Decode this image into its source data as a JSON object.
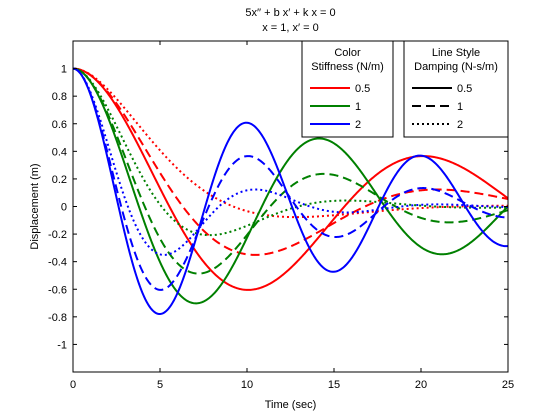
{
  "chart_data": {
    "type": "line",
    "title_lines": [
      "5x′′ + b x′ + k x = 0",
      "x = 1, x′ = 0"
    ],
    "xlabel": "Time (sec)",
    "ylabel": "Displacement (m)",
    "xlim": [
      0,
      25
    ],
    "ylim": [
      -1.2,
      1.2
    ],
    "xticks": [
      0,
      5,
      10,
      15,
      20,
      25
    ],
    "yticks": [
      -1,
      -0.8,
      -0.6,
      -0.4,
      -0.2,
      0,
      0.2,
      0.4,
      0.6,
      0.8,
      1
    ],
    "grid": false,
    "mass": 5,
    "initial_displacement": 1,
    "initial_velocity": 0,
    "t_step": 0.05,
    "color_legend": {
      "title_lines": [
        "Color",
        "Stiffness (N/m)"
      ],
      "entries": [
        {
          "label": "0.5",
          "k": 0.5,
          "color": "#ff0000"
        },
        {
          "label": "1",
          "k": 1,
          "color": "#008000"
        },
        {
          "label": "2",
          "k": 2,
          "color": "#0000ff"
        }
      ]
    },
    "style_legend": {
      "title_lines": [
        "Line Style",
        "Damping (N-s/m)"
      ],
      "entries": [
        {
          "label": "0.5",
          "b": 0.5,
          "dash": "solid"
        },
        {
          "label": "1",
          "b": 1,
          "dash": "dashed"
        },
        {
          "label": "2",
          "b": 2,
          "dash": "dotted"
        }
      ]
    },
    "legend_placement": "top-right",
    "series": [
      {
        "k": 0.5,
        "b": 0.5,
        "color": "#ff0000",
        "dash": "solid",
        "peak": {
          "t": 19.8,
          "x": 0.36
        },
        "trough": {
          "t": 9.9,
          "x": -0.6
        }
      },
      {
        "k": 0.5,
        "b": 1,
        "color": "#ff0000",
        "dash": "dashed",
        "peak": {
          "t": 20.2,
          "x": 0.12
        },
        "trough": {
          "t": 10.1,
          "x": -0.34
        }
      },
      {
        "k": 0.5,
        "b": 2,
        "color": "#ff0000",
        "dash": "dotted",
        "peak": {
          "t": 21.8,
          "x": 0.01
        },
        "trough": {
          "t": 10.9,
          "x": -0.11
        }
      },
      {
        "k": 1,
        "b": 0.5,
        "color": "#008000",
        "dash": "solid",
        "peak": {
          "t": 14.1,
          "x": 0.49
        },
        "trough": {
          "t": 7.0,
          "x": -0.7
        }
      },
      {
        "k": 1,
        "b": 1,
        "color": "#008000",
        "dash": "dashed",
        "peak": {
          "t": 14.3,
          "x": 0.24
        },
        "trough": {
          "t": 7.2,
          "x": -0.49
        }
      },
      {
        "k": 1,
        "b": 2,
        "color": "#008000",
        "dash": "dotted",
        "peak": {
          "t": 14.9,
          "x": 0.06
        },
        "trough": {
          "t": 7.5,
          "x": -0.24
        }
      },
      {
        "k": 2,
        "b": 0.5,
        "color": "#0000ff",
        "dash": "solid",
        "peak": {
          "t": 10.0,
          "x": 0.6
        },
        "trough": {
          "t": 5.0,
          "x": -0.77
        }
      },
      {
        "k": 2,
        "b": 1,
        "color": "#0000ff",
        "dash": "dashed",
        "peak": {
          "t": 10.1,
          "x": 0.36
        },
        "trough": {
          "t": 5.0,
          "x": -0.6
        }
      },
      {
        "k": 2,
        "b": 2,
        "color": "#0000ff",
        "dash": "dotted",
        "peak": {
          "t": 10.3,
          "x": 0.13
        },
        "trough": {
          "t": 5.2,
          "x": -0.36
        }
      }
    ]
  }
}
